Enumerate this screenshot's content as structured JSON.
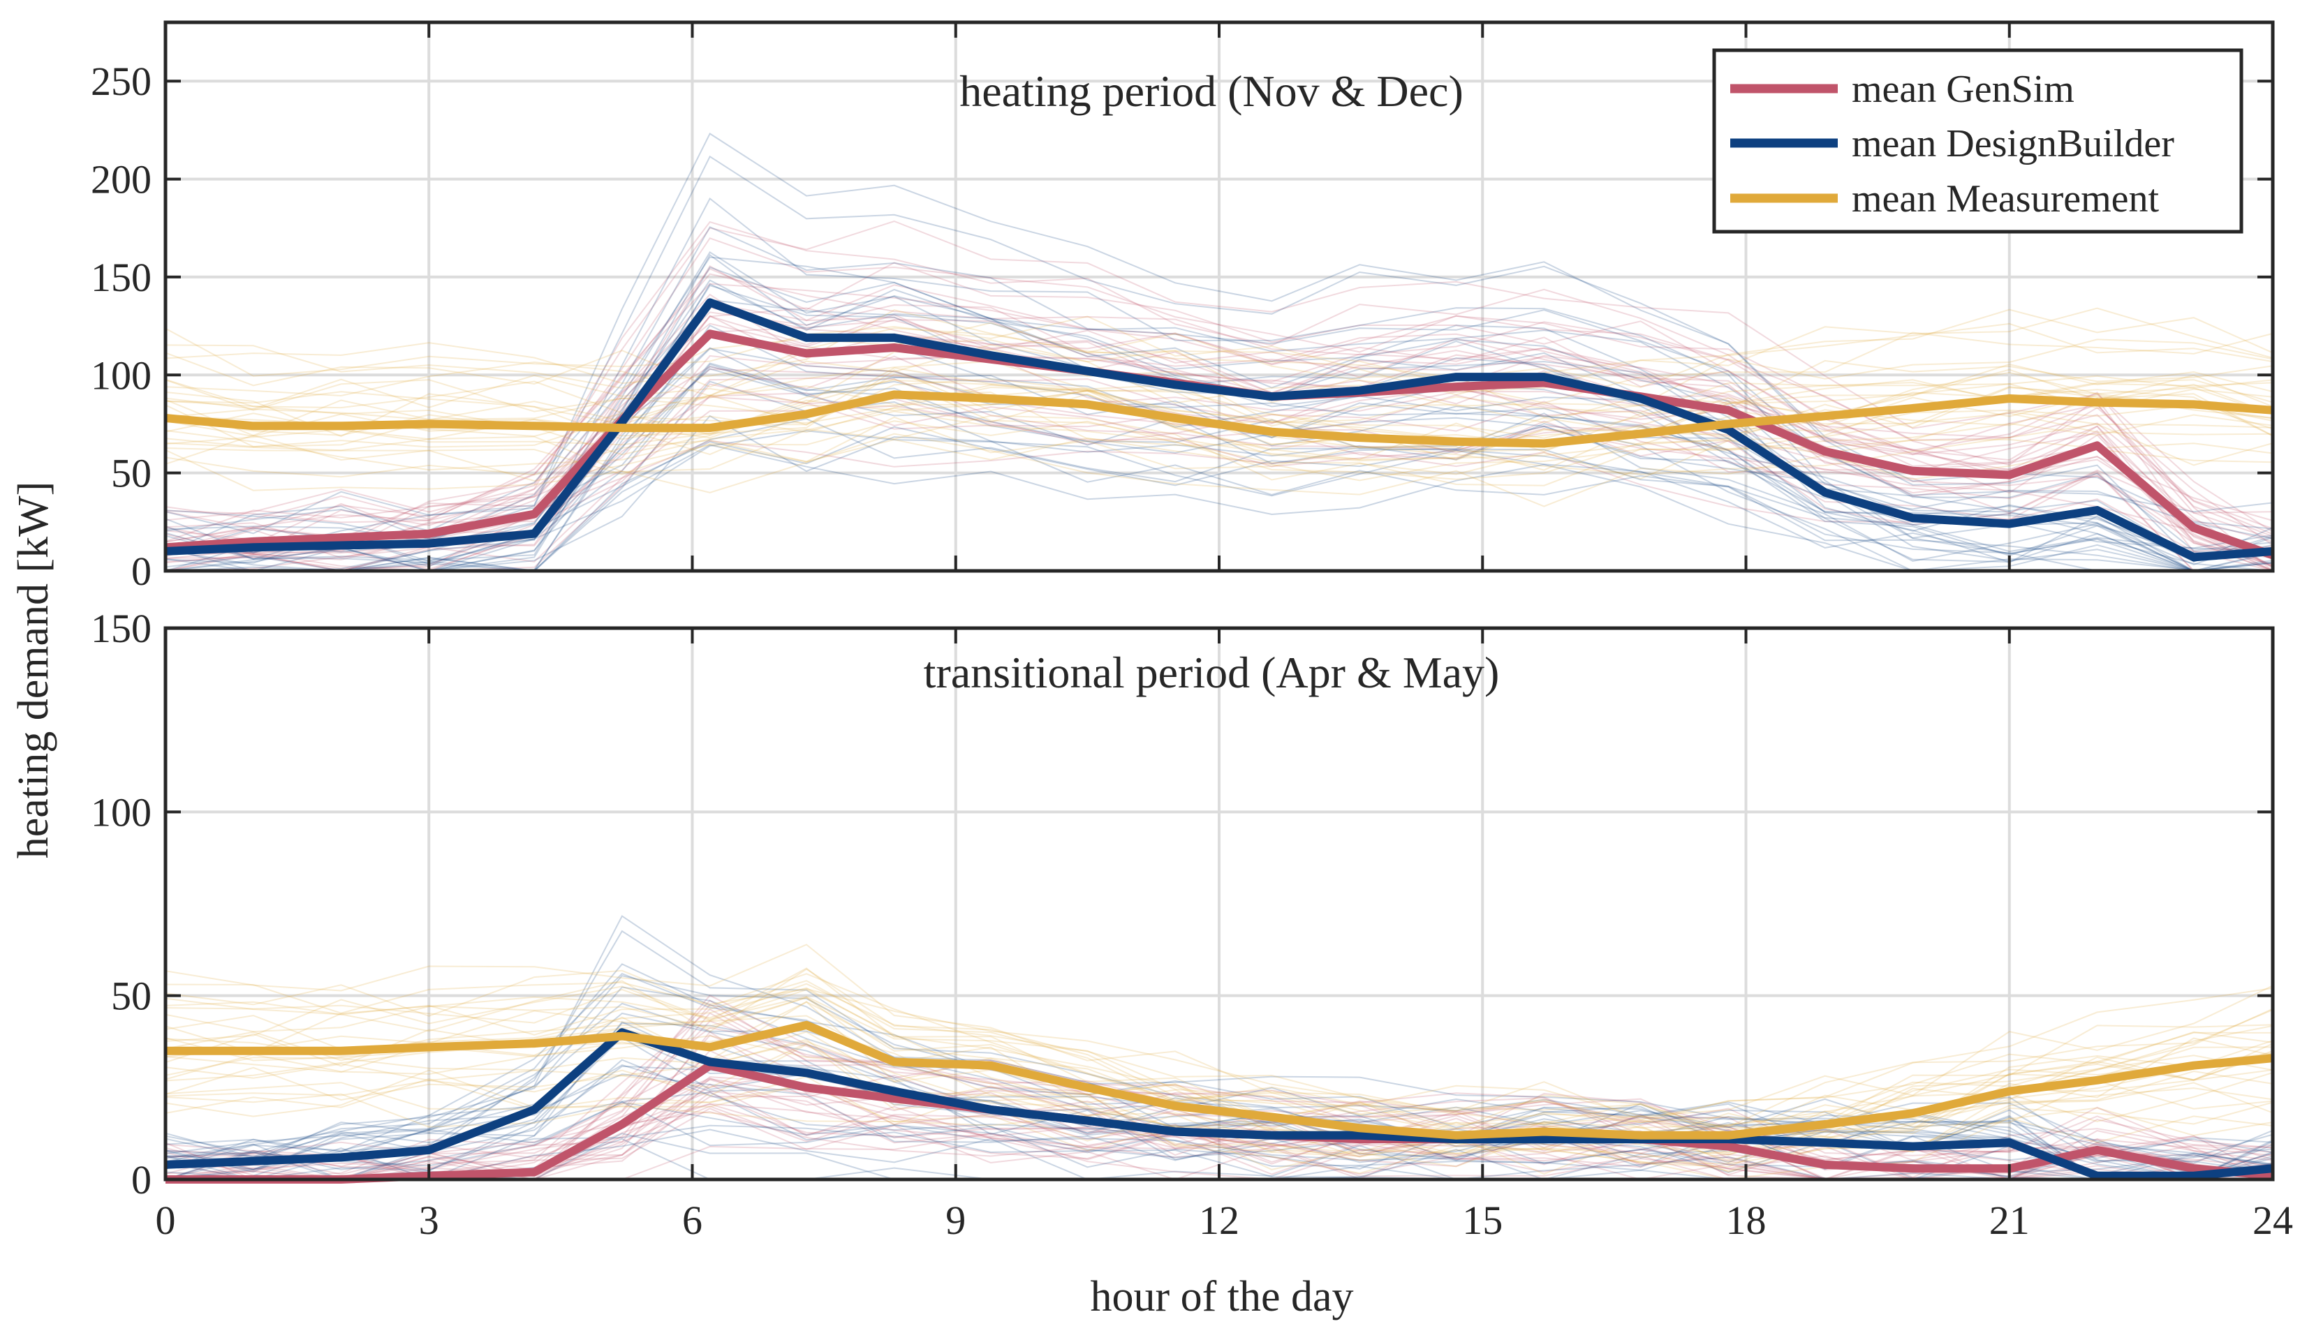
{
  "chart_data": [
    {
      "type": "line",
      "title": "heating period (Nov & Dec)",
      "xlabel": "hour of the day",
      "ylabel": "heating demand [kW]",
      "xlim": [
        0,
        24
      ],
      "ylim": [
        0,
        280
      ],
      "xticks": [
        0,
        3,
        6,
        9,
        12,
        15,
        18,
        21,
        24
      ],
      "yticks": [
        0,
        50,
        100,
        150,
        200,
        250
      ],
      "grid": true,
      "legend": {
        "position": "top-right",
        "entries": [
          "mean GenSim",
          "mean DesignBuilder",
          "mean Measurement"
        ]
      },
      "x": [
        0,
        1,
        2,
        3,
        4.2,
        5.2,
        6.2,
        7.3,
        8.3,
        9.4,
        10.5,
        11.5,
        12.6,
        13.6,
        14.7,
        15.7,
        16.8,
        17.8,
        18.9,
        19.9,
        21,
        22,
        23.1,
        24
      ],
      "series": [
        {
          "name": "mean GenSim",
          "color": "#c0546a",
          "values": [
            12,
            15,
            17,
            19,
            29,
            77,
            121,
            111,
            114,
            108,
            102,
            96,
            89,
            91,
            94,
            96,
            89,
            82,
            61,
            51,
            49,
            64,
            22,
            8
          ]
        },
        {
          "name": "mean DesignBuilder",
          "color": "#0d4080",
          "values": [
            10,
            12,
            13,
            14,
            19,
            76,
            137,
            119,
            119,
            110,
            102,
            95,
            89,
            92,
            99,
            99,
            88,
            72,
            40,
            27,
            24,
            31,
            7,
            10
          ]
        },
        {
          "name": "mean Measurement",
          "color": "#e0a93a",
          "values": [
            78,
            74,
            74,
            75,
            74,
            73,
            73,
            80,
            90,
            88,
            85,
            78,
            71,
            68,
            66,
            65,
            70,
            75,
            79,
            83,
            88,
            86,
            85,
            82
          ]
        }
      ]
    },
    {
      "type": "line",
      "title": "transitional period (Apr & May)",
      "xlabel": "hour of the day",
      "ylabel": "heating demand [kW]",
      "xlim": [
        0,
        24
      ],
      "ylim": [
        0,
        150
      ],
      "xticks": [
        0,
        3,
        6,
        9,
        12,
        15,
        18,
        21,
        24
      ],
      "xtick_labels": [
        "0",
        "3",
        "6",
        "9",
        "12",
        "15",
        "18",
        "21",
        "24"
      ],
      "yticks": [
        0,
        50,
        100,
        150
      ],
      "grid": true,
      "x": [
        0,
        1,
        2,
        3,
        4.2,
        5.2,
        6.2,
        7.3,
        8.3,
        9.4,
        10.5,
        11.5,
        12.6,
        13.6,
        14.7,
        15.7,
        16.8,
        17.8,
        18.9,
        19.9,
        21,
        22,
        23.1,
        24
      ],
      "series": [
        {
          "name": "mean GenSim",
          "color": "#c0546a",
          "values": [
            0,
            0,
            0,
            1,
            2,
            15,
            31,
            25,
            22,
            19,
            16,
            13,
            12,
            11,
            11,
            12,
            11,
            9,
            4,
            3,
            3,
            8,
            3,
            1
          ]
        },
        {
          "name": "mean DesignBuilder",
          "color": "#0d4080",
          "values": [
            4,
            5,
            6,
            8,
            19,
            40,
            32,
            29,
            24,
            19,
            16,
            13,
            12,
            12,
            11,
            11,
            11,
            11,
            10,
            9,
            10,
            1,
            1,
            3
          ]
        },
        {
          "name": "mean Measurement",
          "color": "#e0a93a",
          "values": [
            35,
            35,
            35,
            36,
            37,
            39,
            36,
            42,
            32,
            31,
            25,
            20,
            17,
            14,
            12,
            13,
            12,
            12,
            15,
            18,
            24,
            27,
            31,
            33
          ]
        }
      ]
    }
  ]
}
